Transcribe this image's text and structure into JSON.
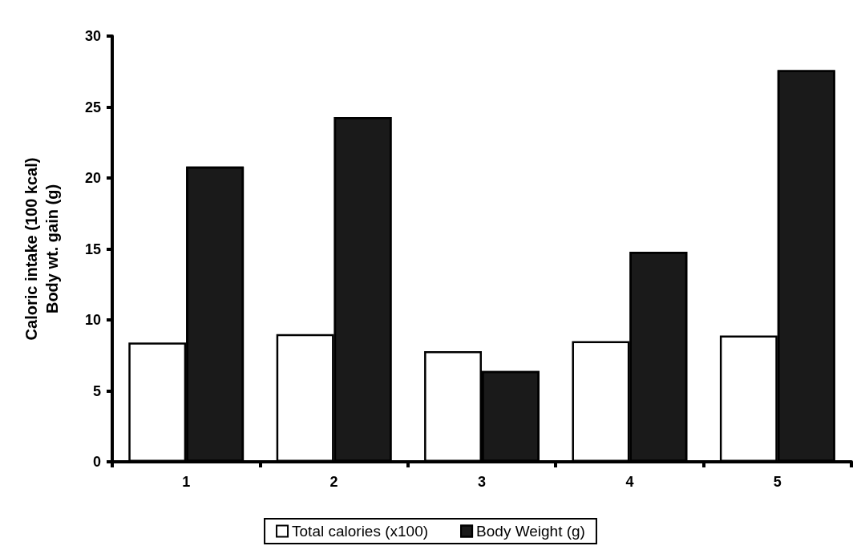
{
  "chart_data": {
    "type": "bar",
    "ylabel": "Caloric intake (100 kcal)\nBody wt. gain (g)",
    "categories": [
      "1",
      "2",
      "3",
      "4",
      "5"
    ],
    "series": [
      {
        "name": "Total calories (x100)",
        "color": "#ffffff",
        "values": [
          8.4,
          9.0,
          7.8,
          8.5,
          8.9
        ]
      },
      {
        "name": "Body Weight (g)",
        "color": "#1a1a1a",
        "values": [
          20.8,
          24.3,
          6.4,
          14.8,
          27.6
        ]
      }
    ],
    "ylim": [
      0,
      30
    ],
    "yticks": [
      0,
      5,
      10,
      15,
      20,
      25,
      30
    ],
    "grid": false,
    "legend": "bottom"
  }
}
